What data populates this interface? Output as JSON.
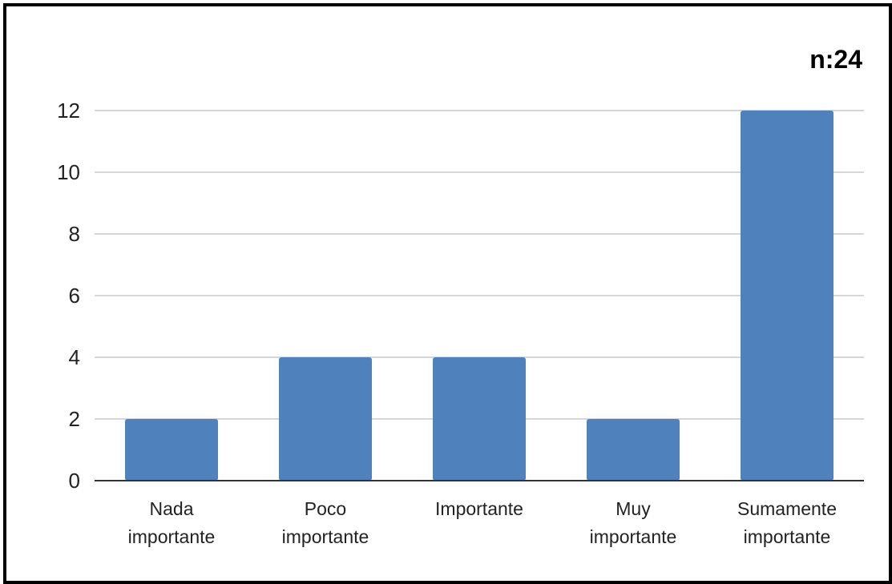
{
  "chart_data": {
    "type": "bar",
    "annotation": "n:24",
    "categories": [
      [
        "Nada",
        "importante"
      ],
      [
        "Poco",
        "importante"
      ],
      [
        "Importante"
      ],
      [
        "Muy",
        "importante"
      ],
      [
        "Sumamente",
        "importante"
      ]
    ],
    "values": [
      2,
      4,
      4,
      2,
      12
    ],
    "ylim": [
      0,
      12
    ],
    "yticks": [
      0,
      2,
      4,
      6,
      8,
      10,
      12
    ],
    "grid": true,
    "legend": "none",
    "bar_color": "#4f81bd",
    "grid_color": "#d6d6d6",
    "axis_color": "#333333"
  }
}
